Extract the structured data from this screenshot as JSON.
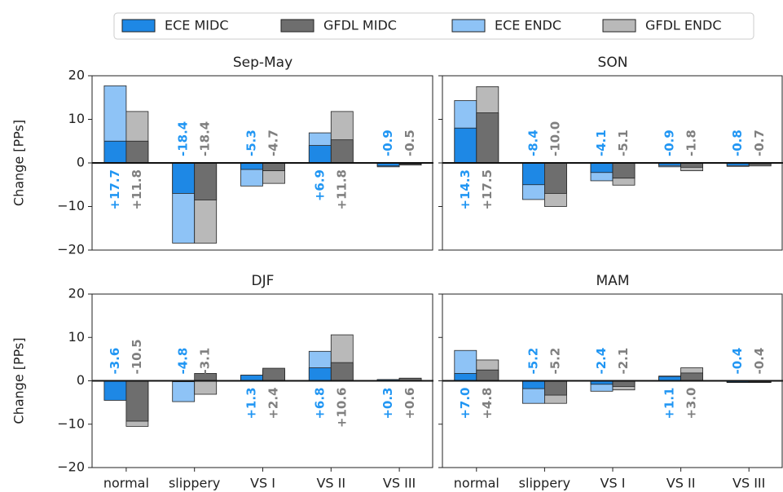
{
  "legend": [
    {
      "name": "ECE MIDC",
      "color": "#1e88e5"
    },
    {
      "name": "GFDL MIDC",
      "color": "#6e6e6e"
    },
    {
      "name": "ECE ENDC",
      "color": "#8ec3f6"
    },
    {
      "name": "GFDL ENDC",
      "color": "#b9b9b9"
    }
  ],
  "categories": [
    "normal",
    "slippery",
    "VS I",
    "VS II",
    "VS III"
  ],
  "ylabel": "Change [PPs]",
  "ylim": [
    -20,
    20
  ],
  "yticks": [
    {
      "value": -20,
      "label": "−20"
    },
    {
      "value": -10,
      "label": "−10"
    },
    0,
    10,
    20
  ],
  "chart_data": [
    {
      "type": "bar",
      "title": "Sep-May",
      "series": [
        {
          "values": [
            5,
            -7,
            -1.5,
            4,
            -0.7
          ]
        },
        {
          "values": [
            5,
            -8.5,
            -1.8,
            5.3,
            -0.3
          ]
        },
        {
          "values": [
            17.7,
            -18.4,
            -5.3,
            6.9,
            -0.9
          ],
          "value_labels": [
            "+17.7",
            "-18.4",
            "-5.3",
            "+6.9",
            "-0.9"
          ]
        },
        {
          "values": [
            11.8,
            -18.4,
            -4.7,
            11.8,
            -0.5
          ],
          "value_labels": [
            "+11.8",
            "-18.4",
            "-4.7",
            "+11.8",
            "-0.5"
          ]
        }
      ]
    },
    {
      "type": "bar",
      "title": "SON",
      "series": [
        {
          "values": [
            8,
            -5,
            -2.2,
            -0.6,
            -0.6
          ]
        },
        {
          "values": [
            11.5,
            -7,
            -3.5,
            -1,
            -0.4
          ]
        },
        {
          "values": [
            14.3,
            -8.4,
            -4.1,
            -0.9,
            -0.8
          ],
          "value_labels": [
            "+14.3",
            "-8.4",
            "-4.1",
            "-0.9",
            "-0.8"
          ]
        },
        {
          "values": [
            17.5,
            -10.0,
            -5.1,
            -1.8,
            -0.7
          ],
          "value_labels": [
            "+17.5",
            "-10.0",
            "-5.1",
            "-1.8",
            "-0.7"
          ]
        }
      ]
    },
    {
      "type": "bar",
      "title": "DJF",
      "series": [
        {
          "values": [
            -4.5,
            -0.2,
            1.3,
            3,
            0.3
          ]
        },
        {
          "values": [
            -9.3,
            1.7,
            2.9,
            4.2,
            0.6
          ]
        },
        {
          "values": [
            -3.6,
            -4.8,
            1.3,
            6.8,
            0.3
          ],
          "value_labels": [
            "-3.6",
            "-4.8",
            "+1.3",
            "+6.8",
            "+0.3"
          ]
        },
        {
          "values": [
            -10.5,
            -3.1,
            2.4,
            10.6,
            0.6
          ],
          "value_labels": [
            "-10.5",
            "-3.1",
            "+2.4",
            "+10.6",
            "+0.6"
          ]
        }
      ]
    },
    {
      "type": "bar",
      "title": "MAM",
      "series": [
        {
          "values": [
            1.7,
            -1.8,
            -0.8,
            1.0,
            -0.3
          ]
        },
        {
          "values": [
            2.5,
            -3.3,
            -1.3,
            1.8,
            -0.3
          ]
        },
        {
          "values": [
            7.0,
            -5.2,
            -2.4,
            1.1,
            -0.4
          ],
          "value_labels": [
            "+7.0",
            "-5.2",
            "-2.4",
            "+1.1",
            "-0.4"
          ]
        },
        {
          "values": [
            4.8,
            -5.2,
            -2.1,
            3.0,
            -0.4
          ],
          "value_labels": [
            "+4.8",
            "-5.2",
            "-2.1",
            "+3.0",
            "-0.4"
          ]
        }
      ]
    }
  ]
}
